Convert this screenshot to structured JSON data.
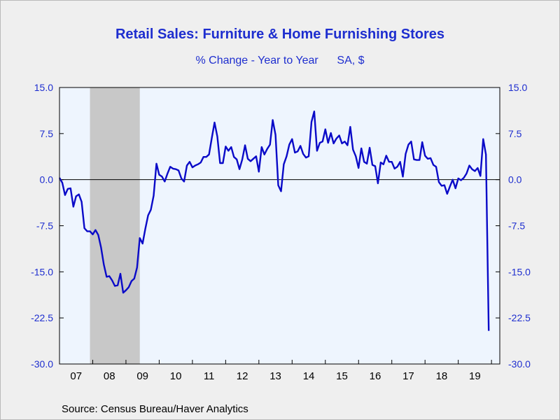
{
  "header": {
    "title": "Retail Sales: Furniture & Home Furnishing Stores",
    "subtitle": "% Change - Year to Year",
    "units": "SA, $"
  },
  "footer": {
    "source": "Source:  Census Bureau/Haver Analytics"
  },
  "colors": {
    "line": "#0a0ac8",
    "text": "#1e2ecf",
    "plot_bg": "#eef5fe",
    "recession": "#c8c8c8",
    "axis": "#000000"
  },
  "chart_data": {
    "type": "line",
    "title": "Retail Sales: Furniture & Home Furnishing Stores",
    "subtitle": "% Change - Year to Year",
    "units": "SA, $",
    "ylim": [
      -30,
      15
    ],
    "yticks": [
      "15.0",
      "7.5",
      "0.0",
      "-7.5",
      "-15.0",
      "-22.5",
      "-30.0"
    ],
    "ytick_values": [
      15,
      7.5,
      0,
      -7.5,
      -15,
      -22.5,
      -30
    ],
    "xlim": [
      "2007-01",
      "2020-04"
    ],
    "xtick_labels": [
      "07",
      "08",
      "09",
      "10",
      "11",
      "12",
      "13",
      "14",
      "15",
      "16",
      "17",
      "18",
      "19"
    ],
    "recession": [
      "2007-12",
      "2009-06"
    ],
    "zero_line": true,
    "grid": false,
    "series": [
      {
        "start": "2007-01",
        "frequency": "monthly",
        "values": [
          0.3,
          -0.5,
          -2.5,
          -1.5,
          -1.4,
          -4.4,
          -2.7,
          -2.4,
          -3.6,
          -7.9,
          -8.4,
          -8.4,
          -8.9,
          -8.2,
          -9.0,
          -11.0,
          -13.8,
          -15.8,
          -15.7,
          -16.4,
          -17.3,
          -17.2,
          -15.3,
          -18.4,
          -18.0,
          -17.5,
          -16.5,
          -16.1,
          -14.3,
          -9.5,
          -10.4,
          -8.0,
          -5.8,
          -4.9,
          -2.6,
          2.6,
          0.8,
          0.5,
          -0.3,
          1.0,
          2.1,
          1.8,
          1.7,
          1.5,
          0.2,
          -0.3,
          2.3,
          2.9,
          2.0,
          2.3,
          2.5,
          2.8,
          3.7,
          3.7,
          4.1,
          6.8,
          9.3,
          7.0,
          2.7,
          2.7,
          5.4,
          4.7,
          5.3,
          3.7,
          3.3,
          1.7,
          3.3,
          5.6,
          3.4,
          3.0,
          3.4,
          3.8,
          1.3,
          5.3,
          4.1,
          5.0,
          5.7,
          9.7,
          7.3,
          -0.9,
          -1.9,
          2.5,
          3.8,
          5.7,
          6.6,
          4.4,
          4.6,
          5.5,
          4.2,
          3.6,
          3.8,
          9.4,
          11.1,
          4.7,
          6.0,
          6.2,
          8.2,
          6.0,
          7.6,
          5.9,
          6.7,
          7.2,
          5.9,
          6.2,
          5.6,
          8.6,
          4.9,
          3.8,
          1.9,
          5.1,
          2.9,
          2.6,
          5.2,
          2.4,
          2.2,
          -0.6,
          2.8,
          2.5,
          3.9,
          2.9,
          2.9,
          1.8,
          2.1,
          2.9,
          0.5,
          4.2,
          5.7,
          6.2,
          3.3,
          3.2,
          3.2,
          6.1,
          3.9,
          3.4,
          3.5,
          2.4,
          2.1,
          -0.4,
          -1.0,
          -0.9,
          -2.3,
          -1.1,
          0.0,
          -1.4,
          0.2,
          -0.1,
          0.3,
          1.0,
          2.3,
          1.7,
          1.4,
          1.9,
          0.6,
          6.6,
          4.1,
          -24.6
        ]
      }
    ]
  }
}
